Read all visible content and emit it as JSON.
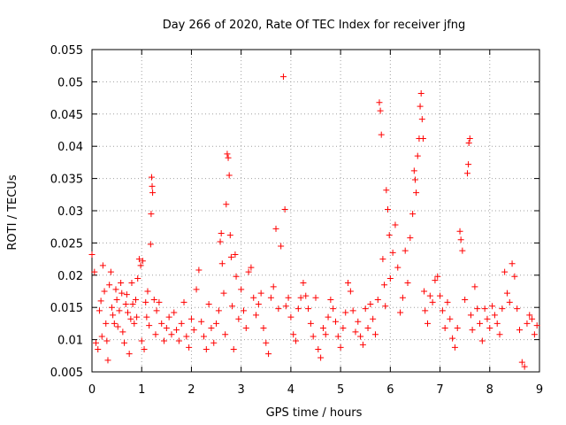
{
  "chart_data": {
    "type": "scatter",
    "title": "Day 266 of 2020, Rate Of TEC Index for receiver jfng",
    "xlabel": "GPS time / hours",
    "ylabel": "ROTI / TECUs",
    "xlim": [
      0,
      9
    ],
    "ylim": [
      0.005,
      0.055
    ],
    "x_ticks": [
      0,
      1,
      2,
      3,
      4,
      5,
      6,
      7,
      8,
      9
    ],
    "x_tick_labels": [
      "0",
      "1",
      "2",
      "3",
      "4",
      "5",
      "6",
      "7",
      "8",
      "9"
    ],
    "y_ticks": [
      0.005,
      0.01,
      0.015,
      0.02,
      0.025,
      0.03,
      0.035,
      0.04,
      0.045,
      0.05,
      0.055
    ],
    "y_tick_labels": [
      "0.005",
      "0.01",
      "0.015",
      "0.02",
      "0.025",
      "0.03",
      "0.035",
      "0.04",
      "0.045",
      "0.05",
      "0.055"
    ],
    "grid": true,
    "marker": "+",
    "color": "#ff0000",
    "series": [
      {
        "name": "ROTI",
        "points": [
          [
            0.0,
            0.0232
          ],
          [
            0.05,
            0.0205
          ],
          [
            0.08,
            0.0095
          ],
          [
            0.12,
            0.0085
          ],
          [
            0.15,
            0.0145
          ],
          [
            0.18,
            0.016
          ],
          [
            0.2,
            0.0105
          ],
          [
            0.22,
            0.0215
          ],
          [
            0.25,
            0.0175
          ],
          [
            0.28,
            0.0125
          ],
          [
            0.3,
            0.0098
          ],
          [
            0.32,
            0.0068
          ],
          [
            0.35,
            0.0185
          ],
          [
            0.38,
            0.0205
          ],
          [
            0.4,
            0.015
          ],
          [
            0.42,
            0.0138
          ],
          [
            0.45,
            0.0125
          ],
          [
            0.48,
            0.0178
          ],
          [
            0.5,
            0.0162
          ],
          [
            0.52,
            0.012
          ],
          [
            0.55,
            0.0145
          ],
          [
            0.58,
            0.0188
          ],
          [
            0.6,
            0.0172
          ],
          [
            0.62,
            0.0112
          ],
          [
            0.65,
            0.0095
          ],
          [
            0.68,
            0.0155
          ],
          [
            0.7,
            0.017
          ],
          [
            0.72,
            0.0142
          ],
          [
            0.75,
            0.0078
          ],
          [
            0.78,
            0.0132
          ],
          [
            0.8,
            0.0188
          ],
          [
            0.82,
            0.0155
          ],
          [
            0.85,
            0.0125
          ],
          [
            0.88,
            0.0162
          ],
          [
            0.9,
            0.0135
          ],
          [
            0.92,
            0.0195
          ],
          [
            0.95,
            0.0225
          ],
          [
            0.98,
            0.0215
          ],
          [
            1.0,
            0.0098
          ],
          [
            1.02,
            0.0222
          ],
          [
            1.05,
            0.0085
          ],
          [
            1.08,
            0.0158
          ],
          [
            1.1,
            0.0135
          ],
          [
            1.12,
            0.0175
          ],
          [
            1.15,
            0.0122
          ],
          [
            1.18,
            0.0248
          ],
          [
            1.19,
            0.0295
          ],
          [
            1.2,
            0.0352
          ],
          [
            1.21,
            0.0338
          ],
          [
            1.22,
            0.0328
          ],
          [
            1.25,
            0.0162
          ],
          [
            1.28,
            0.0108
          ],
          [
            1.3,
            0.0145
          ],
          [
            1.35,
            0.0158
          ],
          [
            1.4,
            0.0125
          ],
          [
            1.45,
            0.0098
          ],
          [
            1.5,
            0.0118
          ],
          [
            1.55,
            0.0135
          ],
          [
            1.6,
            0.0108
          ],
          [
            1.65,
            0.0142
          ],
          [
            1.7,
            0.0115
          ],
          [
            1.75,
            0.0098
          ],
          [
            1.8,
            0.0125
          ],
          [
            1.85,
            0.0158
          ],
          [
            1.9,
            0.0105
          ],
          [
            1.95,
            0.0088
          ],
          [
            2.0,
            0.0132
          ],
          [
            2.05,
            0.0115
          ],
          [
            2.1,
            0.0178
          ],
          [
            2.15,
            0.0208
          ],
          [
            2.2,
            0.0128
          ],
          [
            2.25,
            0.0105
          ],
          [
            2.3,
            0.0085
          ],
          [
            2.35,
            0.0155
          ],
          [
            2.4,
            0.0118
          ],
          [
            2.45,
            0.0095
          ],
          [
            2.5,
            0.0125
          ],
          [
            2.55,
            0.0145
          ],
          [
            2.58,
            0.0252
          ],
          [
            2.6,
            0.0265
          ],
          [
            2.62,
            0.0218
          ],
          [
            2.65,
            0.0172
          ],
          [
            2.68,
            0.0108
          ],
          [
            2.7,
            0.031
          ],
          [
            2.72,
            0.0388
          ],
          [
            2.74,
            0.0382
          ],
          [
            2.76,
            0.0355
          ],
          [
            2.78,
            0.0262
          ],
          [
            2.8,
            0.0228
          ],
          [
            2.82,
            0.0152
          ],
          [
            2.85,
            0.0085
          ],
          [
            2.88,
            0.0232
          ],
          [
            2.9,
            0.0198
          ],
          [
            2.95,
            0.0132
          ],
          [
            3.0,
            0.0178
          ],
          [
            3.05,
            0.0145
          ],
          [
            3.1,
            0.0118
          ],
          [
            3.15,
            0.0205
          ],
          [
            3.2,
            0.0212
          ],
          [
            3.25,
            0.0165
          ],
          [
            3.3,
            0.0138
          ],
          [
            3.35,
            0.0155
          ],
          [
            3.4,
            0.0172
          ],
          [
            3.45,
            0.0118
          ],
          [
            3.5,
            0.0095
          ],
          [
            3.55,
            0.0078
          ],
          [
            3.6,
            0.0165
          ],
          [
            3.65,
            0.0182
          ],
          [
            3.7,
            0.0272
          ],
          [
            3.75,
            0.0148
          ],
          [
            3.8,
            0.0245
          ],
          [
            3.85,
            0.0508
          ],
          [
            3.88,
            0.0302
          ],
          [
            3.9,
            0.0152
          ],
          [
            3.95,
            0.0165
          ],
          [
            4.0,
            0.0135
          ],
          [
            4.05,
            0.0108
          ],
          [
            4.1,
            0.0098
          ],
          [
            4.15,
            0.0148
          ],
          [
            4.2,
            0.0165
          ],
          [
            4.25,
            0.0188
          ],
          [
            4.3,
            0.0168
          ],
          [
            4.35,
            0.0148
          ],
          [
            4.4,
            0.0125
          ],
          [
            4.45,
            0.0105
          ],
          [
            4.5,
            0.0165
          ],
          [
            4.55,
            0.0085
          ],
          [
            4.6,
            0.0072
          ],
          [
            4.65,
            0.0118
          ],
          [
            4.7,
            0.0108
          ],
          [
            4.75,
            0.0135
          ],
          [
            4.8,
            0.0162
          ],
          [
            4.85,
            0.0148
          ],
          [
            4.9,
            0.0128
          ],
          [
            4.95,
            0.0105
          ],
          [
            5.0,
            0.0088
          ],
          [
            5.05,
            0.0118
          ],
          [
            5.1,
            0.0142
          ],
          [
            5.15,
            0.0188
          ],
          [
            5.2,
            0.0175
          ],
          [
            5.25,
            0.0145
          ],
          [
            5.3,
            0.0112
          ],
          [
            5.35,
            0.0128
          ],
          [
            5.4,
            0.0105
          ],
          [
            5.45,
            0.0092
          ],
          [
            5.5,
            0.0148
          ],
          [
            5.55,
            0.0118
          ],
          [
            5.6,
            0.0155
          ],
          [
            5.65,
            0.0132
          ],
          [
            5.7,
            0.0108
          ],
          [
            5.75,
            0.0162
          ],
          [
            5.78,
            0.0468
          ],
          [
            5.8,
            0.0455
          ],
          [
            5.82,
            0.0418
          ],
          [
            5.85,
            0.0225
          ],
          [
            5.88,
            0.0185
          ],
          [
            5.9,
            0.0152
          ],
          [
            5.92,
            0.0332
          ],
          [
            5.95,
            0.0302
          ],
          [
            5.98,
            0.0262
          ],
          [
            6.0,
            0.0195
          ],
          [
            6.05,
            0.0235
          ],
          [
            6.1,
            0.0278
          ],
          [
            6.15,
            0.0212
          ],
          [
            6.2,
            0.0142
          ],
          [
            6.25,
            0.0165
          ],
          [
            6.3,
            0.0238
          ],
          [
            6.35,
            0.0188
          ],
          [
            6.4,
            0.0258
          ],
          [
            6.45,
            0.0295
          ],
          [
            6.48,
            0.0362
          ],
          [
            6.5,
            0.0348
          ],
          [
            6.52,
            0.0328
          ],
          [
            6.55,
            0.0385
          ],
          [
            6.58,
            0.0412
          ],
          [
            6.6,
            0.0462
          ],
          [
            6.62,
            0.0482
          ],
          [
            6.64,
            0.0442
          ],
          [
            6.66,
            0.0412
          ],
          [
            6.68,
            0.0175
          ],
          [
            6.7,
            0.0145
          ],
          [
            6.75,
            0.0125
          ],
          [
            6.8,
            0.0168
          ],
          [
            6.85,
            0.0158
          ],
          [
            6.9,
            0.0192
          ],
          [
            6.95,
            0.0198
          ],
          [
            7.0,
            0.0168
          ],
          [
            7.05,
            0.0145
          ],
          [
            7.1,
            0.0118
          ],
          [
            7.15,
            0.0158
          ],
          [
            7.2,
            0.0132
          ],
          [
            7.25,
            0.0102
          ],
          [
            7.3,
            0.0088
          ],
          [
            7.35,
            0.0118
          ],
          [
            7.4,
            0.0268
          ],
          [
            7.42,
            0.0255
          ],
          [
            7.45,
            0.0238
          ],
          [
            7.5,
            0.0162
          ],
          [
            7.55,
            0.0358
          ],
          [
            7.57,
            0.0372
          ],
          [
            7.58,
            0.0405
          ],
          [
            7.6,
            0.0412
          ],
          [
            7.62,
            0.0138
          ],
          [
            7.65,
            0.0115
          ],
          [
            7.7,
            0.0182
          ],
          [
            7.75,
            0.0148
          ],
          [
            7.8,
            0.0125
          ],
          [
            7.85,
            0.0098
          ],
          [
            7.9,
            0.0148
          ],
          [
            7.95,
            0.0132
          ],
          [
            8.0,
            0.0118
          ],
          [
            8.05,
            0.0152
          ],
          [
            8.1,
            0.0138
          ],
          [
            8.15,
            0.0125
          ],
          [
            8.2,
            0.0108
          ],
          [
            8.25,
            0.0148
          ],
          [
            8.3,
            0.0205
          ],
          [
            8.35,
            0.0172
          ],
          [
            8.4,
            0.0158
          ],
          [
            8.45,
            0.0218
          ],
          [
            8.5,
            0.0198
          ],
          [
            8.55,
            0.0148
          ],
          [
            8.6,
            0.0115
          ],
          [
            8.65,
            0.0065
          ],
          [
            8.7,
            0.0058
          ],
          [
            8.75,
            0.0125
          ],
          [
            8.8,
            0.0138
          ],
          [
            8.85,
            0.0132
          ],
          [
            8.9,
            0.0108
          ],
          [
            8.95,
            0.0122
          ]
        ]
      }
    ]
  }
}
